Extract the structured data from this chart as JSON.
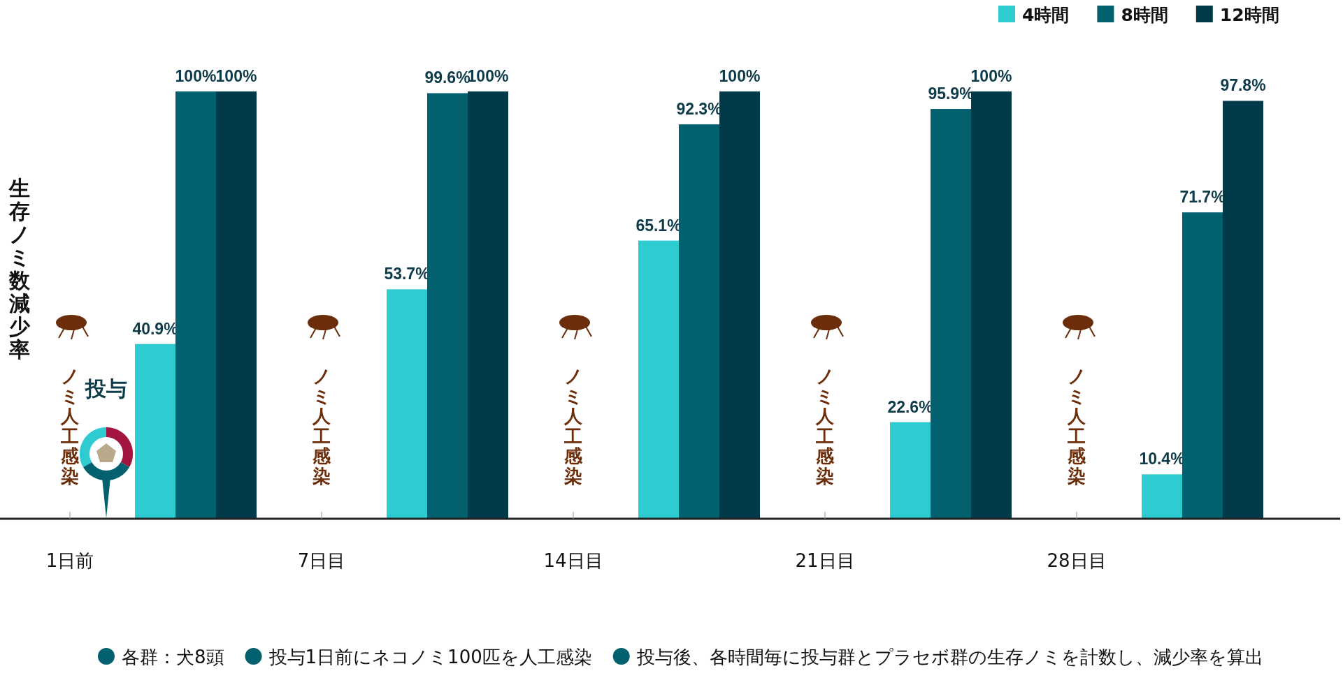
{
  "chart_data": {
    "type": "bar",
    "ylabel": "生存ノミ数減少率",
    "categories": [
      "1日前",
      null,
      "7日目",
      null,
      "14日目",
      null,
      "21日目",
      null,
      "28日目",
      null
    ],
    "series": [
      {
        "name": "4時間",
        "color": "#2ecbd1",
        "values": [
          null,
          40.9,
          null,
          53.7,
          null,
          65.1,
          null,
          22.6,
          null,
          10.4
        ],
        "value_labels": [
          null,
          "40.9%",
          null,
          "53.7%",
          null,
          "65.1%",
          null,
          "22.6%",
          null,
          "10.4%"
        ]
      },
      {
        "name": "8時間",
        "color": "#03606e",
        "values": [
          null,
          100,
          null,
          99.6,
          null,
          92.3,
          null,
          95.9,
          null,
          71.7
        ],
        "value_labels": [
          null,
          "100%",
          null,
          "99.6%",
          null,
          "92.3%",
          null,
          "95.9%",
          null,
          "71.7%"
        ]
      },
      {
        "name": "12時間",
        "color": "#023a4a",
        "values": [
          null,
          100,
          null,
          100,
          null,
          100,
          null,
          100,
          null,
          97.8
        ],
        "value_labels": [
          null,
          "100%",
          null,
          "100%",
          null,
          "100%",
          null,
          "100%",
          null,
          "97.8%"
        ]
      }
    ],
    "legend": "top right",
    "annotations": [
      "ノミ人工感染",
      "ノミ人工感染",
      "ノミ人工感染",
      "ノミ人工感染",
      "ノミ人工感染",
      "投与",
      "各群：犬8頭",
      "投与1日前にネコノミ100匹を人工感染",
      "投与後、各時間毎に投与群とプラセボ群の生存ノミを計数し、減少率を算出"
    ]
  }
}
